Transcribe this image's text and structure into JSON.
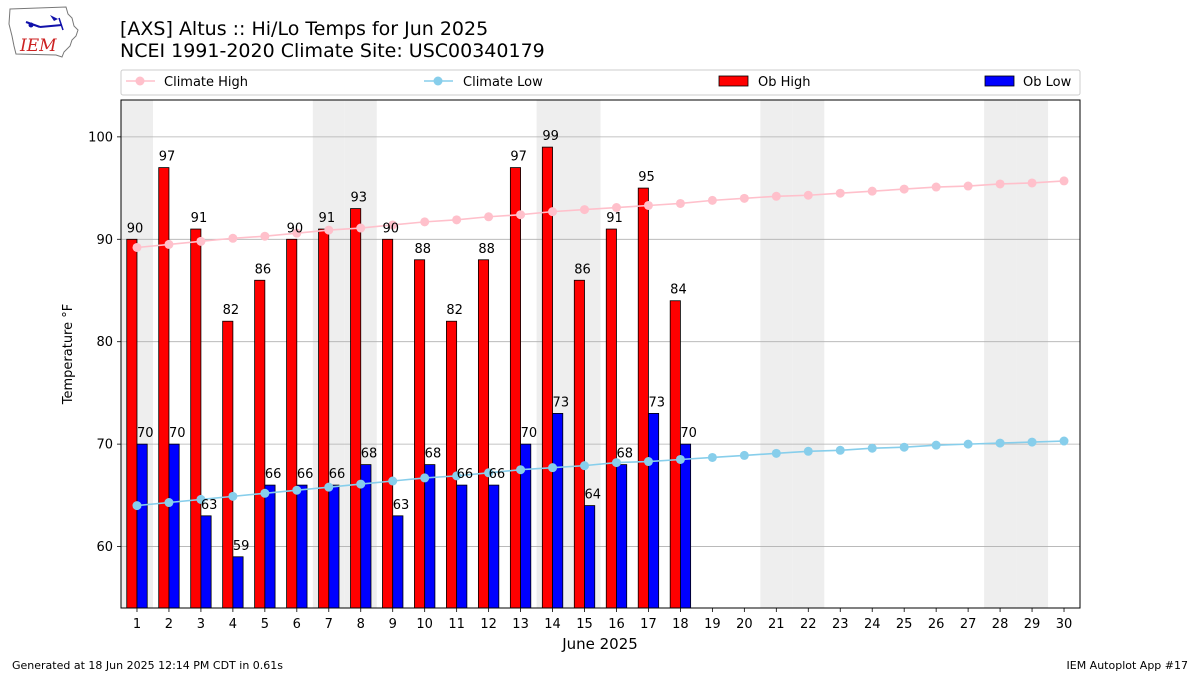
{
  "header": {
    "title_line1": "[AXS] Altus :: Hi/Lo Temps for Jun 2025",
    "title_line2": "NCEI 1991-2020 Climate Site: USC00340179",
    "logo_text": "IEM"
  },
  "footer": {
    "left": "Generated at 18 Jun 2025 12:14 PM CDT in 0.61s",
    "right": "IEM Autoplot App #17"
  },
  "legend": {
    "climate_high": "Climate High",
    "climate_low": "Climate Low",
    "ob_high": "Ob High",
    "ob_low": "Ob Low"
  },
  "colors": {
    "ob_high": "#ff0000",
    "ob_low": "#0000ff",
    "climate_high": "#ffc0cb",
    "climate_low": "#87ceeb",
    "weekend_shade": "#eeeeee",
    "grid": "#b0b0b0"
  },
  "chart_data": {
    "type": "bar",
    "xlabel": "June 2025",
    "ylabel": "Temperature °F",
    "ylim": [
      54,
      103.6
    ],
    "xlim": [
      0.5,
      30.5
    ],
    "yticks": [
      60,
      70,
      80,
      90,
      100
    ],
    "days": [
      1,
      2,
      3,
      4,
      5,
      6,
      7,
      8,
      9,
      10,
      11,
      12,
      13,
      14,
      15,
      16,
      17,
      18,
      19,
      20,
      21,
      22,
      23,
      24,
      25,
      26,
      27,
      28,
      29,
      30
    ],
    "weekend_days": [
      1,
      7,
      8,
      14,
      15,
      21,
      22,
      28,
      29
    ],
    "grid": "y",
    "legend_placement": "top (above plot)",
    "series": [
      {
        "name": "Ob High",
        "type": "bar",
        "values": [
          90,
          97,
          91,
          82,
          86,
          90,
          91,
          93,
          90,
          88,
          82,
          88,
          97,
          99,
          86,
          91,
          95,
          84
        ]
      },
      {
        "name": "Ob Low",
        "type": "bar",
        "values": [
          70,
          70,
          63,
          59,
          66,
          66,
          66,
          68,
          63,
          68,
          66,
          66,
          70,
          73,
          64,
          68,
          73,
          70
        ]
      },
      {
        "name": "Climate High",
        "type": "line",
        "values": [
          89.2,
          89.5,
          89.8,
          90.1,
          90.3,
          90.6,
          90.9,
          91.1,
          91.4,
          91.7,
          91.9,
          92.2,
          92.4,
          92.7,
          92.9,
          93.1,
          93.3,
          93.5,
          93.8,
          94.0,
          94.2,
          94.3,
          94.5,
          94.7,
          94.9,
          95.1,
          95.2,
          95.4,
          95.5,
          95.7
        ]
      },
      {
        "name": "Climate Low",
        "type": "line",
        "values": [
          64.0,
          64.3,
          64.6,
          64.9,
          65.2,
          65.5,
          65.8,
          66.1,
          66.4,
          66.7,
          66.9,
          67.2,
          67.5,
          67.7,
          67.9,
          68.2,
          68.3,
          68.5,
          68.7,
          68.9,
          69.1,
          69.3,
          69.4,
          69.6,
          69.7,
          69.9,
          70.0,
          70.1,
          70.2,
          70.3
        ]
      }
    ]
  }
}
